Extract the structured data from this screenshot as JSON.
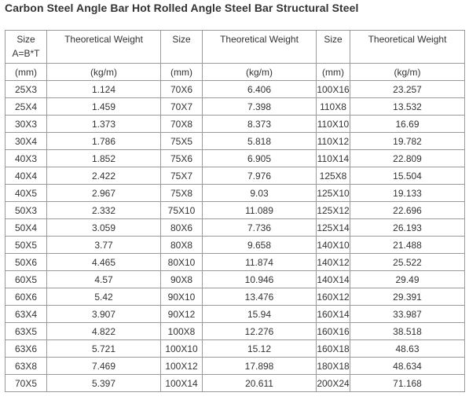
{
  "title": "Carbon Steel Angle Bar Hot Rolled Angle Steel Bar Structural Steel",
  "table": {
    "header": {
      "size_line1": "Size",
      "size_line2": "A=B*T",
      "weight": "Theoretical Weight",
      "size": "Size"
    },
    "units": {
      "size": "(mm)",
      "weight": "(kg/m)"
    },
    "rows": [
      [
        "25X3",
        "1.124",
        "70X6",
        "6.406",
        "100X16",
        "23.257"
      ],
      [
        "25X4",
        "1.459",
        "70X7",
        "7.398",
        "110X8",
        "13.532"
      ],
      [
        "30X3",
        "1.373",
        "70X8",
        "8.373",
        "110X10",
        "16.69"
      ],
      [
        "30X4",
        "1.786",
        "75X5",
        "5.818",
        "110X12",
        "19.782"
      ],
      [
        "40X3",
        "1.852",
        "75X6",
        "6.905",
        "110X14",
        "22.809"
      ],
      [
        "40X4",
        "2.422",
        "75X7",
        "7.976",
        "125X8",
        "15.504"
      ],
      [
        "40X5",
        "2.967",
        "75X8",
        "9.03",
        "125X10",
        "19.133"
      ],
      [
        "50X3",
        "2.332",
        "75X10",
        "11.089",
        "125X12",
        "22.696"
      ],
      [
        "50X4",
        "3.059",
        "80X6",
        "7.736",
        "125X14",
        "26.193"
      ],
      [
        "50X5",
        "3.77",
        "80X8",
        "9.658",
        "140X10",
        "21.488"
      ],
      [
        "50X6",
        "4.465",
        "80X10",
        "11.874",
        "140X12",
        "25.522"
      ],
      [
        "60X5",
        "4.57",
        "90X8",
        "10.946",
        "140X14",
        "29.49"
      ],
      [
        "60X6",
        "5.42",
        "90X10",
        "13.476",
        "160X12",
        "29.391"
      ],
      [
        "63X4",
        "3.907",
        "90X12",
        "15.94",
        "160X14",
        "33.987"
      ],
      [
        "63X5",
        "4.822",
        "100X8",
        "12.276",
        "160X16",
        "38.518"
      ],
      [
        "63X6",
        "5.721",
        "100X10",
        "15.12",
        "160X18",
        "48.63"
      ],
      [
        "63X8",
        "7.469",
        "100X12",
        "17.898",
        "180X18",
        "48.634"
      ],
      [
        "70X5",
        "5.397",
        "100X14",
        "20.611",
        "200X24",
        "71.168"
      ]
    ]
  }
}
